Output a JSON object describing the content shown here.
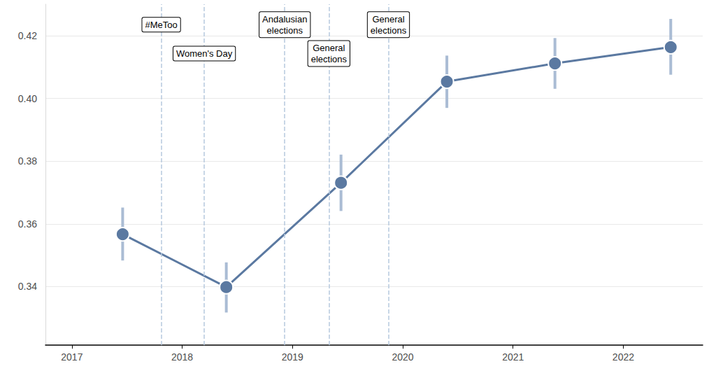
{
  "chart_data": {
    "type": "line",
    "x": [
      2017.46,
      2018.4,
      2019.44,
      2020.4,
      2021.38,
      2022.43
    ],
    "values": [
      0.3567,
      0.3398,
      0.3731,
      0.4054,
      0.4112,
      0.4164
    ],
    "error_low": [
      0.3483,
      0.3317,
      0.3641,
      0.397,
      0.4031,
      0.4076
    ],
    "error_high": [
      0.3652,
      0.3477,
      0.3821,
      0.4137,
      0.4193,
      0.4254
    ],
    "color": "#5b79a1",
    "marker": "circle",
    "xlim": [
      2016.76,
      2022.72
    ],
    "xticks": [
      2017,
      2018,
      2019,
      2020,
      2021,
      2022
    ],
    "ylim": [
      0.3213,
      0.4301
    ],
    "yticks": [
      0.34,
      0.36,
      0.38,
      {
        "value": 0.4,
        "label": "0.40"
      },
      0.42
    ],
    "grid": true,
    "annotations": [
      {
        "x": 2017.81,
        "label": "#MeToo"
      },
      {
        "x": 2018.2,
        "label": "Women's Day"
      },
      {
        "x": 2018.93,
        "label": "Andalusian\nelections"
      },
      {
        "x": 2019.33,
        "label": "General\nelections"
      },
      {
        "x": 2019.87,
        "label": "General\nelections"
      }
    ]
  }
}
